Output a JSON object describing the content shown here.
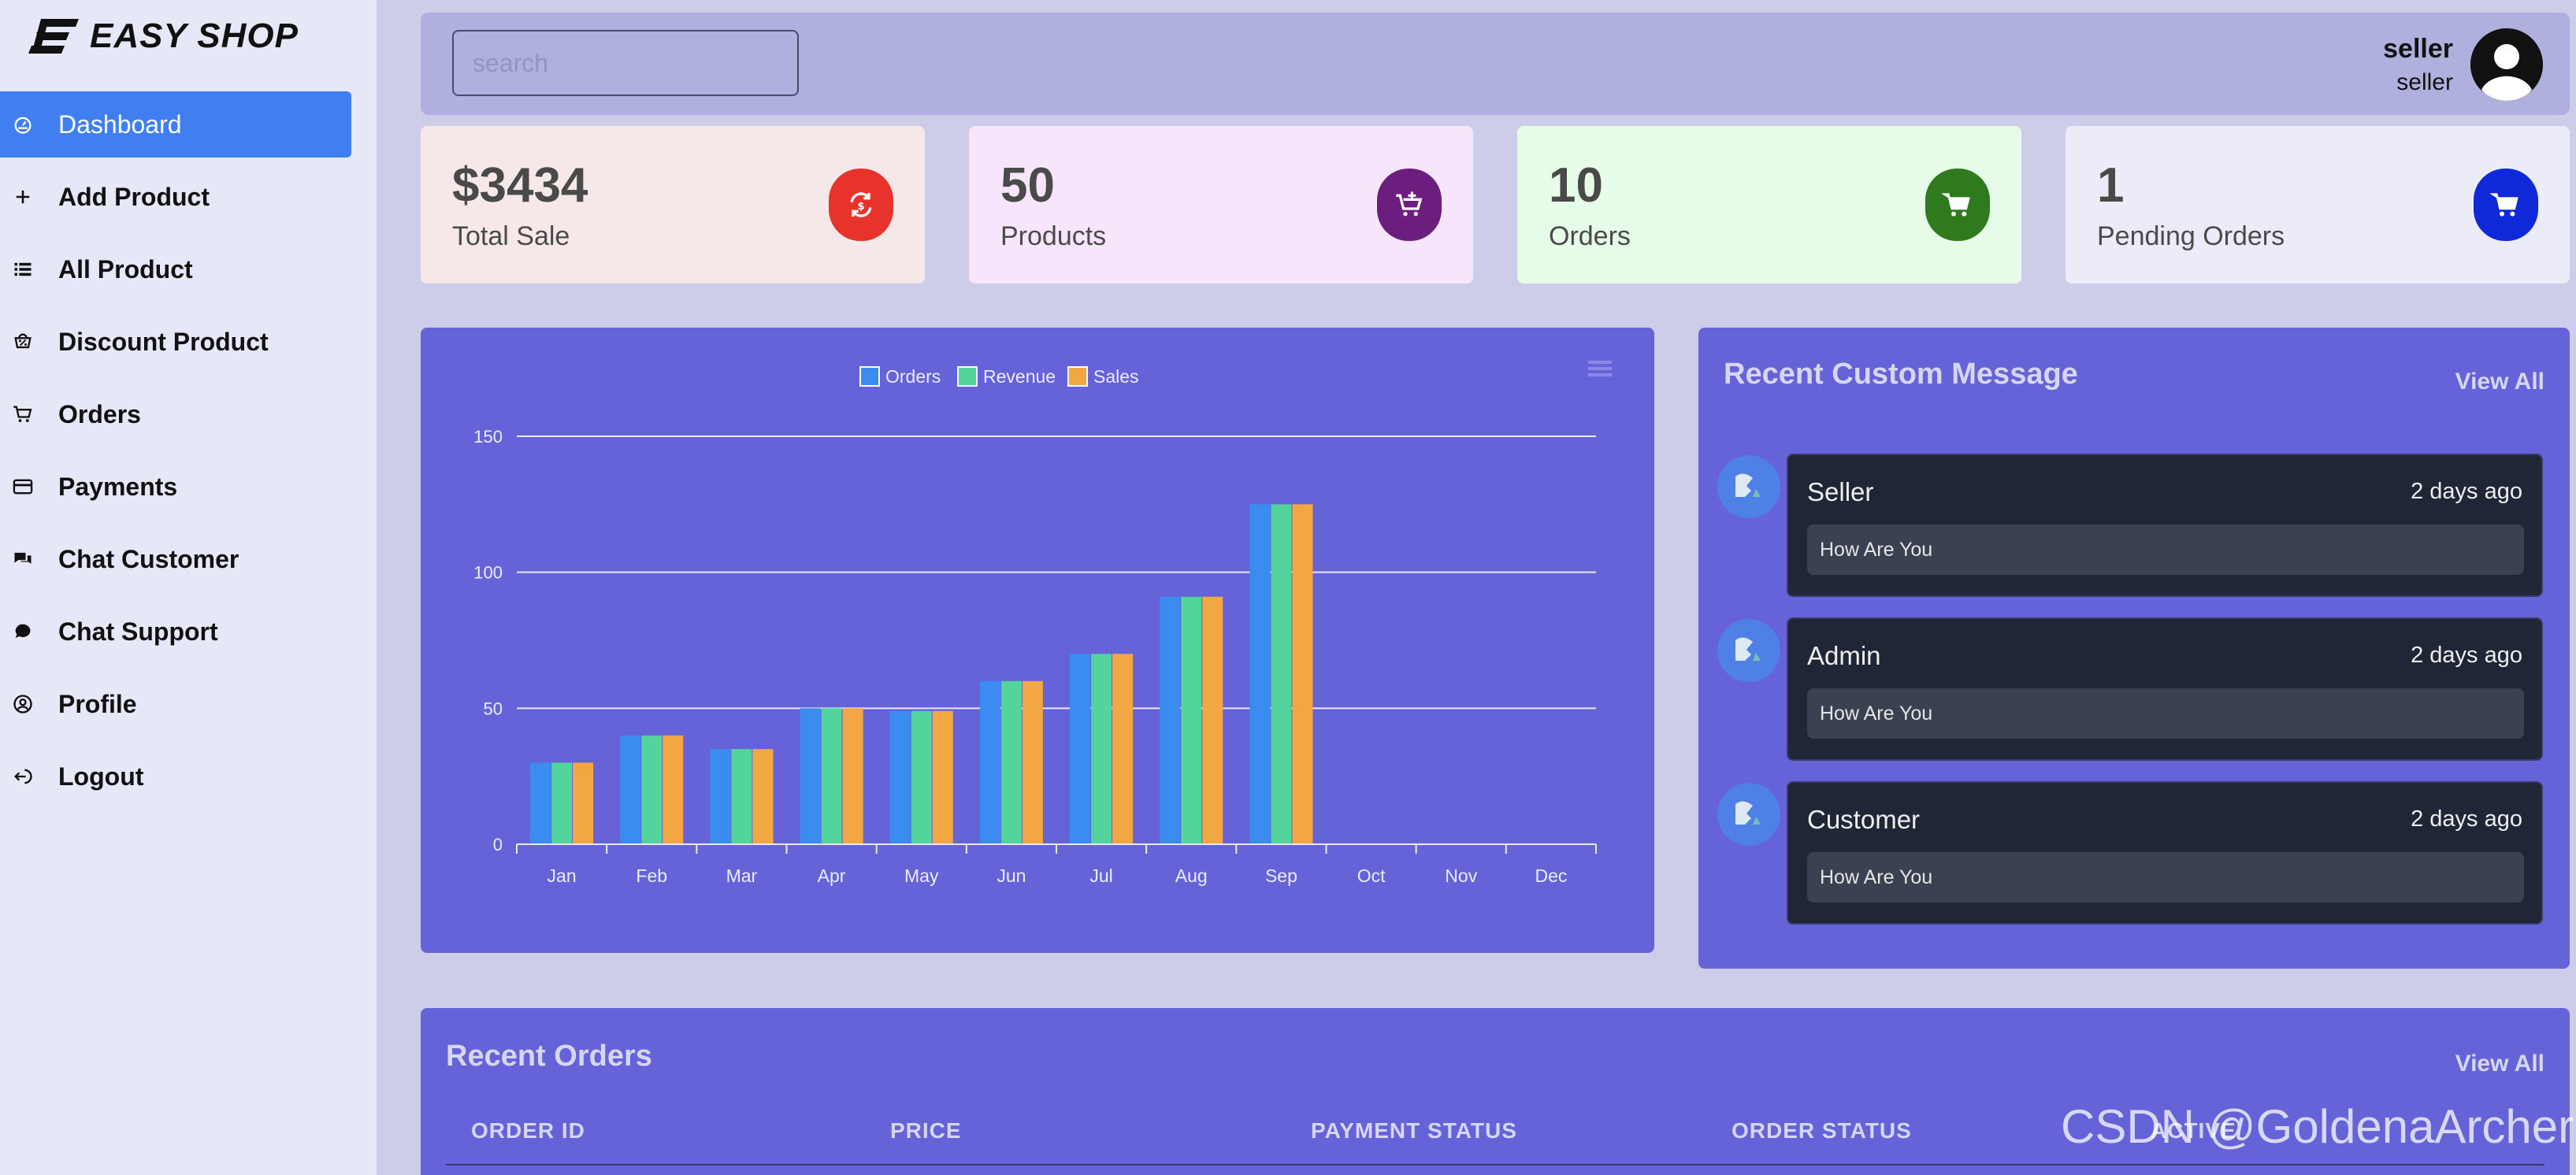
{
  "brand": {
    "name": "EASY SHOP"
  },
  "sidebar": {
    "items": [
      {
        "label": "Dashboard",
        "icon": "dashboard-icon"
      },
      {
        "label": "Add Product",
        "icon": "plus-icon"
      },
      {
        "label": "All Product",
        "icon": "list-icon"
      },
      {
        "label": "Discount Product",
        "icon": "discount-icon"
      },
      {
        "label": "Orders",
        "icon": "cart-icon"
      },
      {
        "label": "Payments",
        "icon": "card-icon"
      },
      {
        "label": "Chat Customer",
        "icon": "chat-icon"
      },
      {
        "label": "Chat Support",
        "icon": "chat-support-icon"
      },
      {
        "label": "Profile",
        "icon": "user-circle-icon"
      },
      {
        "label": "Logout",
        "icon": "logout-icon"
      }
    ]
  },
  "header": {
    "search_placeholder": "search",
    "user_name": "seller",
    "user_role": "seller"
  },
  "stats": [
    {
      "value": "$3434",
      "label": "Total Sale",
      "bg": "#f6e8e8",
      "badge": "#e8332c",
      "icon": "money-exchange-icon"
    },
    {
      "value": "50",
      "label": "Products",
      "bg": "#f7e6fb",
      "badge": "#6b1e7e",
      "icon": "cart-plus-icon"
    },
    {
      "value": "10",
      "label": "Orders",
      "bg": "#e6fbe8",
      "badge": "#2f7a1f",
      "icon": "cart-icon"
    },
    {
      "value": "1",
      "label": "Pending Orders",
      "bg": "#ececf8",
      "badge": "#0f29d8",
      "icon": "cart-icon"
    }
  ],
  "chart_data": {
    "type": "bar",
    "categories": [
      "Jan",
      "Feb",
      "Mar",
      "Apr",
      "May",
      "Jun",
      "Jul",
      "Aug",
      "Sep",
      "Oct",
      "Nov",
      "Dec"
    ],
    "series": [
      {
        "name": "Orders",
        "color": "#3b8cf0",
        "values": [
          30,
          40,
          35,
          50,
          49,
          60,
          70,
          91,
          125,
          0,
          0,
          0
        ]
      },
      {
        "name": "Revenue",
        "color": "#52d49c",
        "values": [
          30,
          40,
          35,
          50,
          49,
          60,
          70,
          91,
          125,
          0,
          0,
          0
        ]
      },
      {
        "name": "Sales",
        "color": "#f2a742",
        "values": [
          30,
          40,
          35,
          50,
          49,
          60,
          70,
          91,
          125,
          0,
          0,
          0
        ]
      }
    ],
    "ylim": [
      0,
      150
    ],
    "yticks": [
      0,
      50,
      100,
      150
    ],
    "grid": true,
    "legend": "top-center"
  },
  "messages": {
    "title": "Recent Custom Message",
    "view_all": "View All",
    "items": [
      {
        "name": "Seller",
        "time": "2 days ago",
        "text": "How Are You"
      },
      {
        "name": "Admin",
        "time": "2 days ago",
        "text": "How Are You"
      },
      {
        "name": "Customer",
        "time": "2 days ago",
        "text": "How Are You"
      }
    ]
  },
  "orders": {
    "title": "Recent Orders",
    "view_all": "View All",
    "columns": [
      "ORDER ID",
      "PRICE",
      "PAYMENT STATUS",
      "ORDER STATUS",
      "ACTIVE"
    ]
  },
  "watermark": "CSDN @GoldenaArcher"
}
